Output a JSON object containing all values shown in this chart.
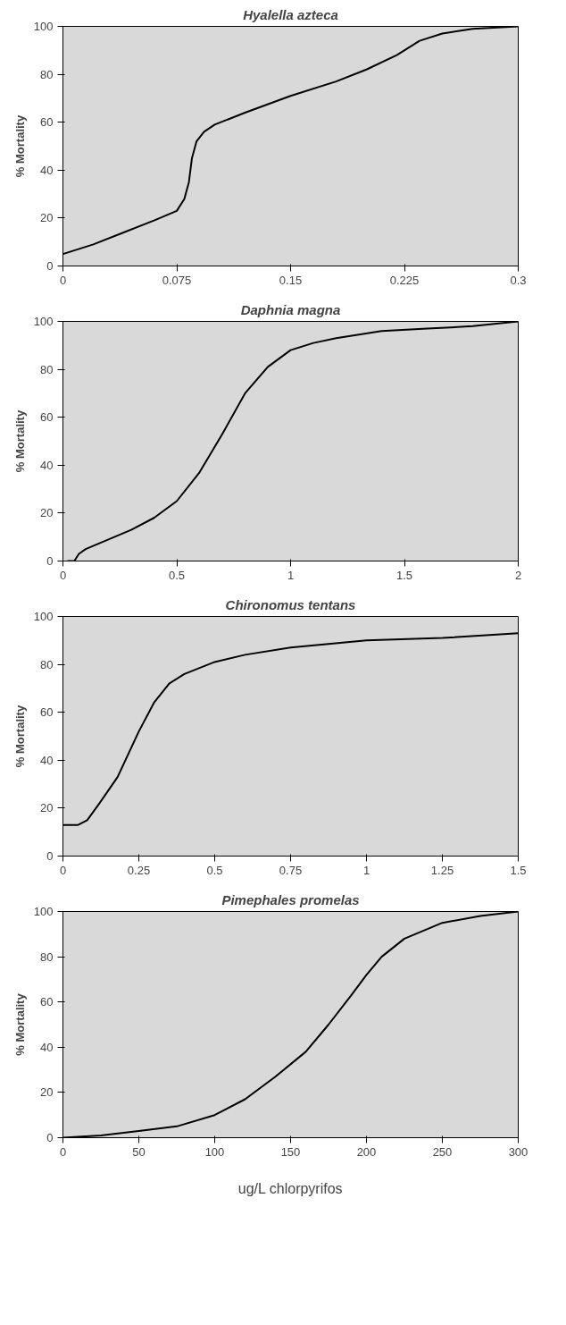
{
  "chart_data": [
    {
      "type": "line",
      "title": "Hyalella azteca",
      "ylabel": "% Mortality",
      "x": [
        0,
        0.02,
        0.04,
        0.06,
        0.075,
        0.08,
        0.083,
        0.085,
        0.088,
        0.093,
        0.1,
        0.12,
        0.15,
        0.18,
        0.2,
        0.22,
        0.235,
        0.25,
        0.27,
        0.3
      ],
      "series": [
        {
          "color": "#000000",
          "values": [
            5,
            9,
            14,
            19,
            23,
            28,
            35,
            45,
            52,
            56,
            59,
            64,
            71,
            77,
            82,
            88,
            94,
            97,
            99,
            100
          ]
        }
      ],
      "xlim": [
        0,
        0.3
      ],
      "xticks": [
        0,
        0.075,
        0.15,
        0.225,
        0.3
      ],
      "ylim": [
        0,
        100
      ],
      "yticks": [
        0,
        20,
        40,
        60,
        80,
        100
      ],
      "grid": false
    },
    {
      "type": "line",
      "title": "Daphnia magna",
      "ylabel": "% Mortality",
      "x": [
        0.02,
        0.05,
        0.07,
        0.1,
        0.2,
        0.3,
        0.4,
        0.5,
        0.6,
        0.7,
        0.8,
        0.9,
        1.0,
        1.1,
        1.2,
        1.4,
        1.6,
        1.8,
        2.0
      ],
      "series": [
        {
          "color": "#000000",
          "values": [
            0,
            0,
            3,
            5,
            9,
            13,
            18,
            25,
            37,
            53,
            70,
            81,
            88,
            91,
            93,
            96,
            97,
            98,
            100
          ]
        }
      ],
      "xlim": [
        0,
        2
      ],
      "xticks": [
        0,
        0.5,
        1,
        1.5,
        2
      ],
      "ylim": [
        0,
        100
      ],
      "yticks": [
        0,
        20,
        40,
        60,
        80,
        100
      ],
      "grid": false
    },
    {
      "type": "line",
      "title": "Chironomus tentans",
      "ylabel": "% Mortality",
      "x": [
        0,
        0.05,
        0.08,
        0.12,
        0.18,
        0.25,
        0.3,
        0.35,
        0.4,
        0.5,
        0.6,
        0.75,
        1.0,
        1.25,
        1.5
      ],
      "series": [
        {
          "color": "#000000",
          "values": [
            13,
            13,
            15,
            22,
            33,
            52,
            64,
            72,
            76,
            81,
            84,
            87,
            90,
            91,
            93
          ]
        }
      ],
      "xlim": [
        0,
        1.5
      ],
      "xticks": [
        0,
        0.25,
        0.5,
        0.75,
        1,
        1.25,
        1.5
      ],
      "ylim": [
        0,
        100
      ],
      "yticks": [
        0,
        20,
        40,
        60,
        80,
        100
      ],
      "grid": false
    },
    {
      "type": "line",
      "title": "Pimephales promelas",
      "ylabel": "% Mortality",
      "xlabel": "ug/L chlorpyrifos",
      "x": [
        0,
        25,
        50,
        75,
        100,
        120,
        140,
        160,
        175,
        190,
        200,
        210,
        225,
        250,
        275,
        300
      ],
      "series": [
        {
          "color": "#000000",
          "values": [
            0,
            1,
            3,
            5,
            10,
            17,
            27,
            38,
            50,
            63,
            72,
            80,
            88,
            95,
            98,
            100
          ]
        }
      ],
      "xlim": [
        0,
        300
      ],
      "xticks": [
        0,
        50,
        100,
        150,
        200,
        250,
        300
      ],
      "ylim": [
        0,
        100
      ],
      "yticks": [
        0,
        20,
        40,
        60,
        80,
        100
      ],
      "grid": false
    }
  ]
}
